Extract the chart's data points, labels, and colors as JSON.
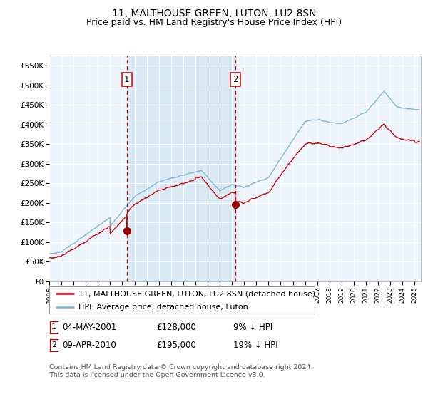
{
  "title": "11, MALTHOUSE GREEN, LUTON, LU2 8SN",
  "subtitle": "Price paid vs. HM Land Registry's House Price Index (HPI)",
  "ylim": [
    0,
    575000
  ],
  "yticks": [
    0,
    50000,
    100000,
    150000,
    200000,
    250000,
    300000,
    350000,
    400000,
    450000,
    500000,
    550000
  ],
  "ytick_labels": [
    "£0",
    "£50K",
    "£100K",
    "£150K",
    "£200K",
    "£250K",
    "£300K",
    "£350K",
    "£400K",
    "£450K",
    "£500K",
    "£550K"
  ],
  "hpi_color": "#7ab3d4",
  "price_color": "#cc0000",
  "marker_color": "#990000",
  "shading_color": "#daeaf5",
  "vline_color": "#cc0000",
  "grid_color": "#cccccc",
  "background_color": "#ffffff",
  "plot_bg_color": "#eef4fb",
  "transaction1_year": 2001.37,
  "transaction2_year": 2010.28,
  "legend_line1": "11, MALTHOUSE GREEN, LUTON, LU2 8SN (detached house)",
  "legend_line2": "HPI: Average price, detached house, Luton",
  "table_row1": [
    "1",
    "04-MAY-2001",
    "£128,000",
    "9% ↓ HPI"
  ],
  "table_row2": [
    "2",
    "09-APR-2010",
    "£195,000",
    "19% ↓ HPI"
  ],
  "footnote1": "Contains HM Land Registry data © Crown copyright and database right 2024.",
  "footnote2": "This data is licensed under the Open Government Licence v3.0.",
  "title_fontsize": 10,
  "subtitle_fontsize": 9,
  "tick_fontsize": 7.5,
  "legend_fontsize": 8,
  "table_fontsize": 8.5
}
